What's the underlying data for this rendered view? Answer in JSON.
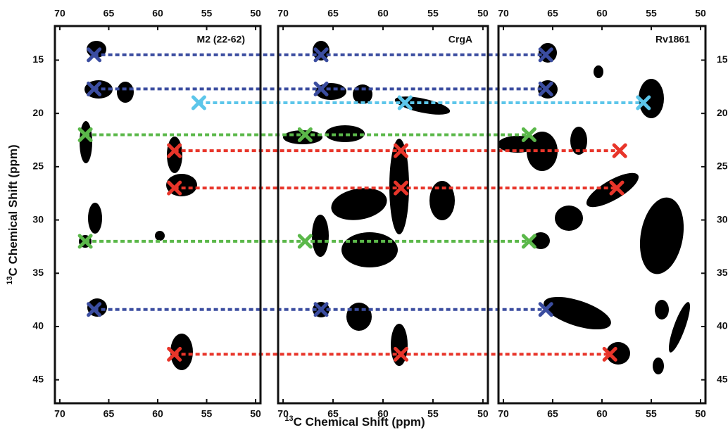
{
  "chart_data": [
    {
      "type": "scatter",
      "title": "M2 (22-62)",
      "y_label_sup": "13",
      "y_label": "C Chemical Shift  (ppm)",
      "xlim": [
        70.5,
        49.5
      ],
      "xticks": [
        70,
        65,
        60,
        55,
        50
      ],
      "ylim": [
        11.8,
        47.2
      ],
      "yticks": [
        15,
        20,
        25,
        30,
        35,
        40,
        45
      ],
      "yaxis_side": "left",
      "series": [
        {
          "color": "#3b4da0",
          "x": [
            66.5,
            66.5,
            66.5
          ],
          "values": [
            14.5,
            17.7,
            38.4
          ]
        },
        {
          "color": "#5cc6ea",
          "x": [
            55.8
          ],
          "values": [
            19
          ]
        },
        {
          "color": "#5bb84a",
          "x": [
            67.4,
            67.4
          ],
          "values": [
            22,
            32
          ]
        },
        {
          "color": "#e8352a",
          "x": [
            58.3,
            58.3,
            58.3
          ],
          "values": [
            23.5,
            27,
            42.6
          ]
        }
      ]
    },
    {
      "type": "scatter",
      "title": "CrgA",
      "x_label_sup": "13",
      "x_label": "C Chemical Shift (ppm)",
      "xlim": [
        70.5,
        49.5
      ],
      "xticks": [
        70,
        65,
        60,
        55,
        50
      ],
      "ylim": [
        11.8,
        47.2
      ],
      "series": [
        {
          "color": "#3b4da0",
          "x": [
            66.2,
            66.2,
            66.2
          ],
          "values": [
            14.5,
            17.7,
            38.4
          ]
        },
        {
          "color": "#5cc6ea",
          "x": [
            57.8
          ],
          "values": [
            19
          ]
        },
        {
          "color": "#5bb84a",
          "x": [
            67.8,
            67.8
          ],
          "values": [
            22,
            32
          ]
        },
        {
          "color": "#e8352a",
          "x": [
            58.2,
            58.2,
            58.2
          ],
          "values": [
            23.5,
            27,
            42.6
          ]
        }
      ]
    },
    {
      "type": "scatter",
      "title": "Rv1861",
      "xlim": [
        70.5,
        49.5
      ],
      "xticks": [
        70,
        65,
        60,
        55,
        50
      ],
      "ylim": [
        11.8,
        47.2
      ],
      "yticks": [
        15,
        20,
        25,
        30,
        35,
        40,
        45
      ],
      "yaxis_side": "right",
      "series": [
        {
          "color": "#3b4da0",
          "x": [
            65.7,
            65.7,
            65.7
          ],
          "values": [
            14.5,
            17.7,
            38.4
          ]
        },
        {
          "color": "#5cc6ea",
          "x": [
            55.8
          ],
          "values": [
            19
          ]
        },
        {
          "color": "#5bb84a",
          "x": [
            67.4,
            67.4
          ],
          "values": [
            22,
            32
          ]
        },
        {
          "color": "#e8352a",
          "x": [
            58.2,
            58.5,
            59.2
          ],
          "values": [
            23.5,
            27,
            42.6
          ]
        }
      ]
    }
  ]
}
